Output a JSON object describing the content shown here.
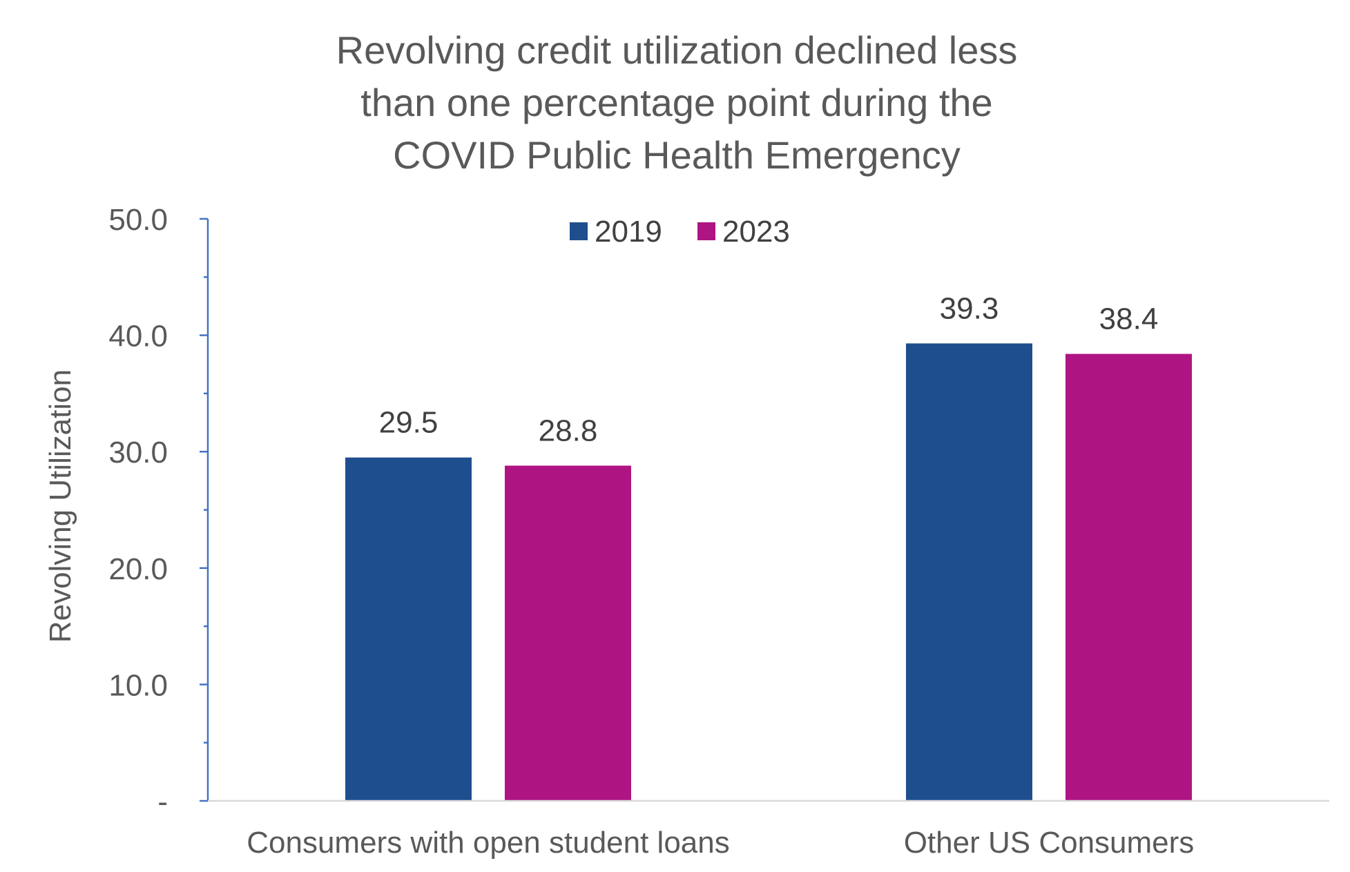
{
  "chart_data": {
    "type": "bar",
    "title_lines": [
      "Revolving credit utilization declined less",
      "than one percentage point during the",
      "COVID Public Health Emergency"
    ],
    "xlabel": "",
    "ylabel": "Revolving Utilization",
    "categories": [
      "Consumers with open student loans",
      "Other US Consumers"
    ],
    "series": [
      {
        "name": "2019",
        "values": [
          29.5,
          39.3
        ],
        "data_labels": [
          "29.5",
          "39.3"
        ],
        "color": "#1F4E8F"
      },
      {
        "name": "2023",
        "values": [
          28.8,
          38.4
        ],
        "data_labels": [
          "28.8",
          "38.4"
        ],
        "color": "#AE1482"
      }
    ],
    "ylim": [
      0,
      50
    ],
    "y_tick_values": [
      0,
      10,
      20,
      30,
      40,
      50
    ],
    "y_tick_labels": [
      "-",
      "10.0",
      "20.0",
      "30.0",
      "40.0",
      "50.0"
    ],
    "legend_position": "top-center",
    "grid": false,
    "axis_color": "#4472C4",
    "baseline_color": "#D9D9D9"
  }
}
